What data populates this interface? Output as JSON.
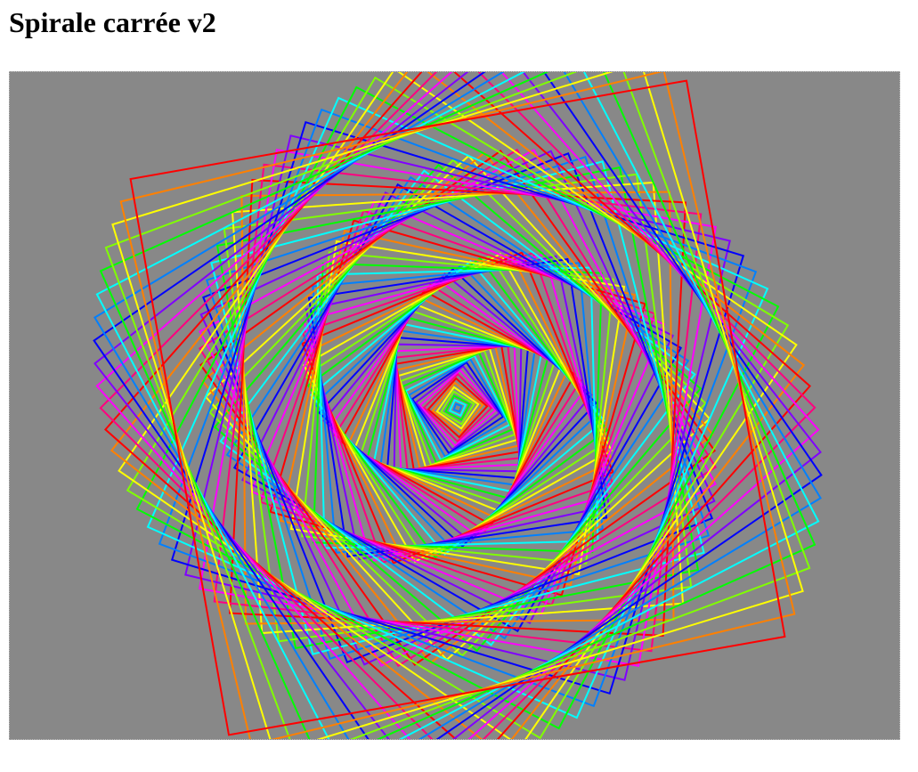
{
  "page": {
    "title": "Spirale carrée v2"
  },
  "canvas": {
    "background": "#888888",
    "border_color": "#bbbbbb"
  },
  "spiral": {
    "square_count": 95,
    "rotation_step_deg": 3.5,
    "stroke_width": 2,
    "palette": [
      "#ff0000",
      "#ff8000",
      "#ffff00",
      "#80ff00",
      "#00ff00",
      "#00ffff",
      "#0080ff",
      "#0000ff",
      "#8000ff",
      "#ff00ff",
      "#ff0080"
    ]
  }
}
